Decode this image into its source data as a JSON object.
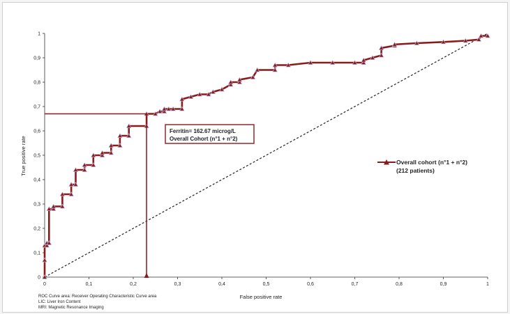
{
  "chart_data": {
    "type": "line",
    "xlabel": "False positive rate",
    "ylabel": "True positive rate",
    "xlim": [
      0,
      1
    ],
    "ylim": [
      0,
      1
    ],
    "x_ticks": [
      "0",
      "0,1",
      "0,2",
      "0,3",
      "0,4",
      "0,5",
      "0,6",
      "0,7",
      "0,8",
      "0,9",
      "1"
    ],
    "y_ticks": [
      "0",
      "0,1",
      "0,2",
      "0,3",
      "0,4",
      "0,5",
      "0,6",
      "0,7",
      "0,8",
      "0,9",
      "1"
    ],
    "grid": false,
    "legend_position": "right",
    "colors": {
      "series": "#8b1a1a",
      "marker_edge": "#b9bce3",
      "reference": "#222222",
      "cutoff": "#8b1a1a"
    },
    "series": [
      {
        "name": "Overall cohort (n°1 + n°2)",
        "name_line2": "(212 patients)",
        "marker": "triangle",
        "x": [
          0,
          0,
          0,
          0.005,
          0.005,
          0.01,
          0.01,
          0.02,
          0.02,
          0.04,
          0.04,
          0.06,
          0.06,
          0.07,
          0.07,
          0.09,
          0.09,
          0.11,
          0.11,
          0.13,
          0.13,
          0.15,
          0.15,
          0.17,
          0.17,
          0.19,
          0.19,
          0.23,
          0.23,
          0.25,
          0.26,
          0.27,
          0.27,
          0.28,
          0.29,
          0.31,
          0.31,
          0.33,
          0.35,
          0.37,
          0.38,
          0.38,
          0.4,
          0.4,
          0.42,
          0.42,
          0.44,
          0.44,
          0.47,
          0.47,
          0.48,
          0.48,
          0.52,
          0.52,
          0.55,
          0.6,
          0.65,
          0.7,
          0.72,
          0.72,
          0.74,
          0.76,
          0.76,
          0.79,
          0.79,
          0.84,
          0.9,
          0.95,
          0.98,
          0.985,
          1.0
        ],
        "y": [
          0,
          0.07,
          0.13,
          0.13,
          0.14,
          0.14,
          0.28,
          0.28,
          0.29,
          0.29,
          0.34,
          0.34,
          0.38,
          0.38,
          0.44,
          0.44,
          0.46,
          0.46,
          0.5,
          0.5,
          0.51,
          0.51,
          0.54,
          0.54,
          0.58,
          0.58,
          0.62,
          0.62,
          0.67,
          0.67,
          0.68,
          0.68,
          0.69,
          0.69,
          0.69,
          0.69,
          0.73,
          0.74,
          0.75,
          0.75,
          0.76,
          0.76,
          0.77,
          0.77,
          0.79,
          0.8,
          0.8,
          0.81,
          0.82,
          0.82,
          0.85,
          0.85,
          0.85,
          0.87,
          0.87,
          0.88,
          0.88,
          0.88,
          0.88,
          0.89,
          0.9,
          0.91,
          0.94,
          0.95,
          0.955,
          0.96,
          0.965,
          0.97,
          0.975,
          0.99,
          0.99
        ]
      }
    ],
    "reference_line": {
      "x": [
        0,
        1
      ],
      "y": [
        0,
        1
      ],
      "style": "dashed"
    },
    "cutoff": {
      "x": 0.23,
      "y": 0.67
    },
    "annotation": {
      "line1": "Ferritin= 162.67 microg/L",
      "line2": "Overall Cohort (n°1 + n°2)"
    },
    "footnotes": [
      "ROC Curve area: Receiver Operating Characteristic Curve area",
      "LIC: Liver Iron Content",
      "MRI: Magnetic Resonance Imaging"
    ]
  }
}
